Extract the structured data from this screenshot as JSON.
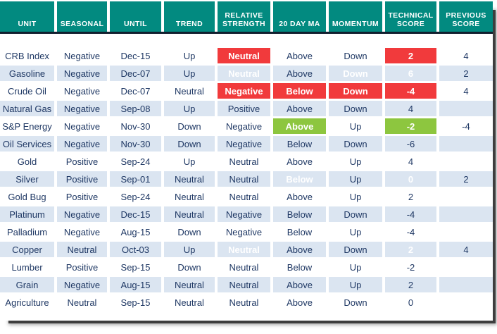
{
  "chart_data": {
    "type": "table",
    "columns": [
      "UNIT",
      "SEASONAL",
      "UNTIL",
      "TREND",
      "RELATIVE STRENGTH",
      "20 DAY MA",
      "MOMENTUM",
      "TECHNICAL SCORE",
      "PREVIOUS SCORE"
    ],
    "rows": [
      [
        "CRB Index",
        "Negative",
        "Dec-15",
        "Up",
        {
          "text": "Neutral",
          "highlight": "red"
        },
        "Above",
        "Down",
        {
          "text": "2",
          "highlight": "red"
        },
        "4"
      ],
      [
        "Gasoline",
        "Negative",
        "Dec-07",
        "Up",
        {
          "text": "Neutral",
          "highlight": "red"
        },
        "Above",
        {
          "text": "Down",
          "highlight": "red"
        },
        {
          "text": "6",
          "highlight": "red"
        },
        "2"
      ],
      [
        "Crude Oil",
        "Negative",
        "Dec-07",
        "Neutral",
        {
          "text": "Negative",
          "highlight": "red"
        },
        {
          "text": "Below",
          "highlight": "red"
        },
        {
          "text": "Down",
          "highlight": "red"
        },
        {
          "text": "-4",
          "highlight": "red"
        },
        "4"
      ],
      [
        "Natural Gas",
        "Negative",
        "Sep-08",
        "Up",
        "Positive",
        "Above",
        "Down",
        "4",
        ""
      ],
      [
        "S&P Energy",
        "Negative",
        "Nov-30",
        "Down",
        "Negative",
        {
          "text": "Above",
          "highlight": "green"
        },
        "Up",
        {
          "text": "-2",
          "highlight": "green"
        },
        "-4"
      ],
      [
        "Oil Services",
        "Negative",
        "Nov-30",
        "Down",
        "Negative",
        "Below",
        "Down",
        "-6",
        ""
      ],
      [
        "Gold",
        "Positive",
        "Sep-24",
        "Up",
        "Neutral",
        "Above",
        "Up",
        "4",
        ""
      ],
      [
        "Silver",
        "Positive",
        "Sep-01",
        "Neutral",
        "Neutral",
        {
          "text": "Below",
          "highlight": "red"
        },
        "Up",
        {
          "text": "0",
          "highlight": "red"
        },
        "2"
      ],
      [
        "Gold Bug",
        "Positive",
        "Sep-24",
        "Neutral",
        "Neutral",
        "Above",
        "Up",
        "2",
        ""
      ],
      [
        "Platinum",
        "Negative",
        "Dec-15",
        "Neutral",
        "Negative",
        "Below",
        "Down",
        "-4",
        ""
      ],
      [
        "Palladium",
        "Negative",
        "Aug-15",
        "Down",
        "Negative",
        "Below",
        "Up",
        "-4",
        ""
      ],
      [
        "Copper",
        "Neutral",
        "Oct-03",
        "Up",
        {
          "text": "Neutral",
          "highlight": "red"
        },
        "Above",
        "Down",
        {
          "text": "2",
          "highlight": "red"
        },
        "4"
      ],
      [
        "Lumber",
        "Positive",
        "Sep-15",
        "Down",
        "Neutral",
        "Below",
        "Up",
        "-2",
        ""
      ],
      [
        "Grain",
        "Negative",
        "Aug-15",
        "Neutral",
        "Neutral",
        "Above",
        "Up",
        "2",
        ""
      ],
      [
        "Agriculture",
        "Neutral",
        "Sep-15",
        "Neutral",
        "Neutral",
        "Above",
        "Down",
        "0",
        ""
      ]
    ]
  },
  "colors": {
    "header_bg": "#028A80",
    "header_text": "#FFFFFF",
    "body_text": "#1F3864",
    "row_alt_bg": "#DBE5F1",
    "highlight_red": "#F13A3C",
    "highlight_green": "#8DC63F",
    "highlight_text": "#FFFFFF",
    "header_divider": "#121F2E",
    "shadow": "#3E3E3E"
  }
}
